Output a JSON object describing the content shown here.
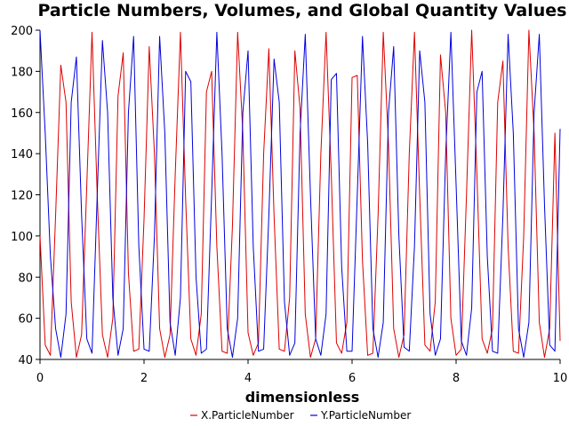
{
  "chart_data": {
    "type": "line",
    "title": "Particle Numbers, Volumes, and Global Quantity Values",
    "xlabel": "dimensionless",
    "ylabel": "",
    "xlim": [
      0,
      10
    ],
    "ylim": [
      40,
      200
    ],
    "x_ticks": [
      "0",
      "2",
      "4",
      "6",
      "8",
      "10"
    ],
    "y_ticks": [
      "40",
      "60",
      "80",
      "100",
      "120",
      "140",
      "160",
      "180",
      "200"
    ],
    "grid": false,
    "legend_position": "bottom-center",
    "x": [
      0,
      0.1,
      0.2,
      0.3,
      0.4,
      0.5,
      0.6,
      0.7,
      0.8,
      0.9,
      1.0,
      1.1,
      1.2,
      1.3,
      1.4,
      1.5,
      1.6,
      1.7,
      1.8,
      1.9,
      2.0,
      2.1,
      2.2,
      2.3,
      2.4,
      2.5,
      2.6,
      2.7,
      2.8,
      2.9,
      3.0,
      3.1,
      3.2,
      3.3,
      3.4,
      3.5,
      3.6,
      3.7,
      3.8,
      3.9,
      4.0,
      4.1,
      4.2,
      4.3,
      4.4,
      4.5,
      4.6,
      4.7,
      4.8,
      4.9,
      5.0,
      5.1,
      5.2,
      5.3,
      5.4,
      5.5,
      5.6,
      5.7,
      5.8,
      5.9,
      6.0,
      6.1,
      6.2,
      6.3,
      6.4,
      6.5,
      6.6,
      6.7,
      6.8,
      6.9,
      7.0,
      7.1,
      7.2,
      7.3,
      7.4,
      7.5,
      7.6,
      7.7,
      7.8,
      7.9,
      8.0,
      8.1,
      8.2,
      8.3,
      8.4,
      8.5,
      8.6,
      8.7,
      8.8,
      8.9,
      9.0,
      9.1,
      9.2,
      9.3,
      9.4,
      9.5,
      9.6,
      9.7,
      9.8,
      9.9,
      10.0
    ],
    "series": [
      {
        "name": "X.ParticleNumber",
        "color": "#dd0000",
        "values": [
          100,
          47,
          42,
          110,
          183,
          165,
          68,
          41,
          52,
          125,
          199,
          120,
          52,
          41,
          60,
          168,
          189,
          82,
          44,
          45,
          108,
          192,
          140,
          55,
          41,
          52,
          130,
          199,
          118,
          50,
          42,
          62,
          170,
          180,
          95,
          44,
          43,
          105,
          199,
          150,
          53,
          42,
          48,
          140,
          191,
          110,
          45,
          44,
          70,
          190,
          162,
          62,
          41,
          50,
          140,
          199,
          130,
          48,
          43,
          58,
          177,
          178,
          88,
          42,
          43,
          110,
          199,
          145,
          55,
          41,
          52,
          140,
          199,
          120,
          47,
          44,
          68,
          188,
          160,
          60,
          42,
          45,
          120,
          200,
          130,
          50,
          43,
          55,
          165,
          185,
          95,
          44,
          43,
          100,
          200,
          150,
          58,
          41,
          55,
          150,
          49
        ]
      },
      {
        "name": "Y.ParticleNumber",
        "color": "#0000dd",
        "values": [
          200,
          150,
          90,
          55,
          41,
          62,
          165,
          187,
          110,
          50,
          43,
          120,
          195,
          160,
          70,
          42,
          55,
          160,
          197,
          95,
          45,
          44,
          100,
          197,
          150,
          58,
          42,
          70,
          180,
          175,
          80,
          43,
          45,
          120,
          199,
          140,
          55,
          41,
          60,
          160,
          190,
          95,
          44,
          45,
          110,
          186,
          165,
          68,
          42,
          48,
          150,
          198,
          120,
          50,
          42,
          62,
          176,
          179,
          85,
          44,
          44,
          120,
          197,
          145,
          55,
          41,
          58,
          160,
          192,
          100,
          46,
          44,
          95,
          190,
          165,
          62,
          42,
          50,
          140,
          199,
          125,
          49,
          42,
          65,
          170,
          180,
          90,
          44,
          43,
          110,
          198,
          150,
          55,
          41,
          58,
          160,
          198,
          115,
          47,
          44,
          152
        ]
      }
    ]
  }
}
